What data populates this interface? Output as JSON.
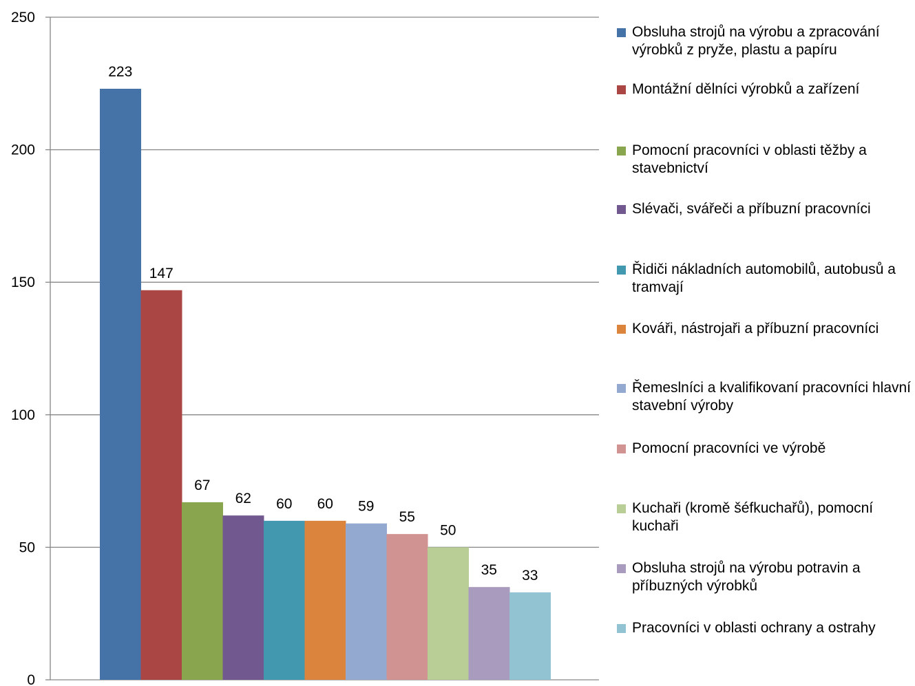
{
  "chart_data": {
    "type": "bar",
    "title": "",
    "xlabel": "",
    "ylabel": "",
    "ylim": [
      0,
      250
    ],
    "yticks": [
      0,
      50,
      100,
      150,
      200,
      250
    ],
    "grid": true,
    "legend_position": "right",
    "series": [
      {
        "name": "Obsluha strojů na výrobu a zpracování výrobků z pryže, plastu a papíru",
        "value": 223,
        "color": "#4572A7"
      },
      {
        "name": "Montážní dělníci výrobků a zařízení",
        "value": 147,
        "color": "#AA4643"
      },
      {
        "name": "Pomocní pracovníci v oblasti těžby a stavebnictví",
        "value": 67,
        "color": "#89A54E"
      },
      {
        "name": "Slévači, svářeči a příbuzní pracovníci",
        "value": 62,
        "color": "#71588F"
      },
      {
        "name": "Řidiči nákladních automobilů, autobusů a tramvají",
        "value": 60,
        "color": "#4198AF"
      },
      {
        "name": "Kováři, nástrojaři a příbuzní pracovníci",
        "value": 60,
        "color": "#DB843D"
      },
      {
        "name": "Řemeslníci a kvalifikovaní pracovníci hlavní stavební výroby",
        "value": 59,
        "color": "#93A9CF"
      },
      {
        "name": "Pomocní pracovníci ve výrobě",
        "value": 55,
        "color": "#D19392"
      },
      {
        "name": "Kuchaři (kromě šéfkuchařů), pomocní kuchaři",
        "value": 50,
        "color": "#B9CD96"
      },
      {
        "name": "Obsluha strojů na výrobu potravin a příbuzných výrobků",
        "value": 35,
        "color": "#A99BBD"
      },
      {
        "name": "Pracovníci v oblasti ochrany a ostrahy",
        "value": 33,
        "color": "#92C3D3"
      }
    ]
  }
}
